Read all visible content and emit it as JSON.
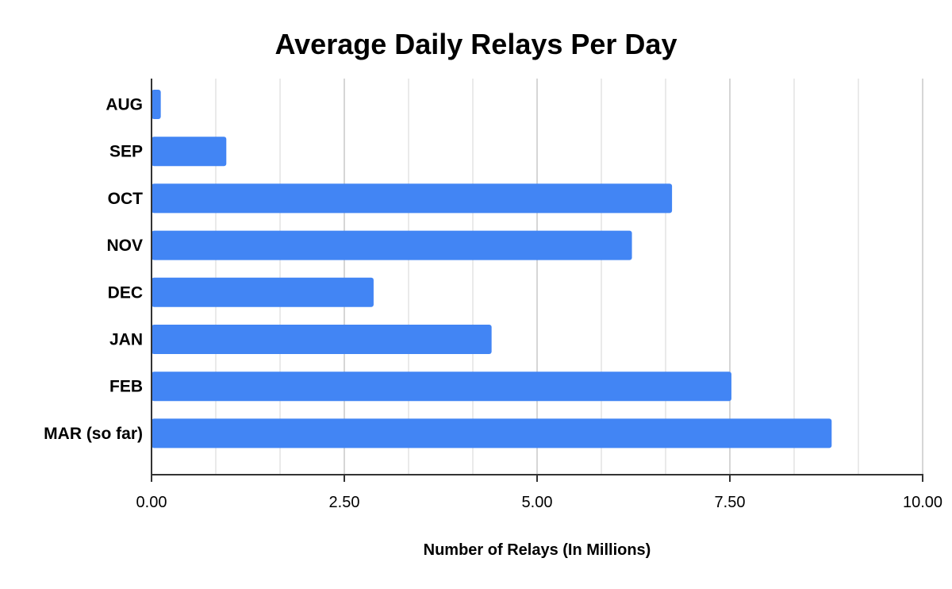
{
  "chart_data": {
    "type": "bar",
    "orientation": "horizontal",
    "title": "Average Daily Relays Per Day",
    "xlabel": "Number of Relays (In Millions)",
    "ylabel": "",
    "categories": [
      "AUG",
      "SEP",
      "OCT",
      "NOV",
      "DEC",
      "JAN",
      "FEB",
      "MAR (so far)"
    ],
    "values": [
      0.12,
      0.97,
      6.75,
      6.23,
      2.88,
      4.41,
      7.52,
      8.82
    ],
    "xlim": [
      0,
      10
    ],
    "ticks": [
      0,
      2.5,
      5,
      7.5,
      10
    ],
    "tick_labels": [
      "0.00",
      "2.50",
      "5.00",
      "7.50",
      "10.00"
    ],
    "grid": true,
    "bar_color": "#4285f4"
  }
}
